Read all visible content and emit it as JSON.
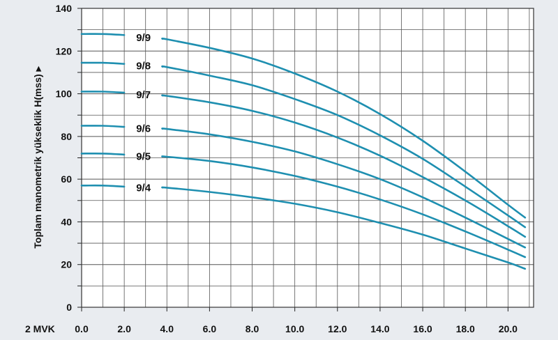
{
  "chart_data": {
    "type": "line",
    "ylabel": "Toplam manometrik yükseklik H(mss) ▸",
    "x_prefix_label": "2 MVK",
    "xlim": [
      0,
      21.2
    ],
    "ylim": [
      0,
      140
    ],
    "x_ticks": [
      0,
      2,
      4,
      6,
      8,
      10,
      12,
      14,
      16,
      18,
      20
    ],
    "x_tick_labels": [
      "0.0",
      "2.0",
      "4.0",
      "6.0",
      "8.0",
      "10.0",
      "12.0",
      "14.0",
      "16.0",
      "18.0",
      "20.0"
    ],
    "y_ticks": [
      0,
      20,
      40,
      60,
      80,
      100,
      120,
      140
    ],
    "y_tick_labels": [
      "0",
      "20",
      "40",
      "60",
      "80",
      "100",
      "120",
      "140"
    ],
    "grid": true,
    "line_color": "#1e8fb0",
    "series": [
      {
        "name": "9/9",
        "x": [
          0,
          1,
          2,
          4,
          6,
          8,
          10,
          12,
          14,
          16,
          18,
          20,
          20.8
        ],
        "y": [
          128,
          128,
          127.5,
          125.5,
          121.5,
          116.5,
          109.5,
          101,
          90.5,
          78,
          63.5,
          48,
          42
        ]
      },
      {
        "name": "9/8",
        "x": [
          0,
          1,
          2,
          4,
          6,
          8,
          10,
          12,
          14,
          16,
          18,
          20,
          20.8
        ],
        "y": [
          114.5,
          114.5,
          114,
          112.5,
          108.5,
          104,
          97.5,
          90,
          80.5,
          69.5,
          56.5,
          43,
          37.5
        ]
      },
      {
        "name": "9/7",
        "x": [
          0,
          1,
          2,
          4,
          6,
          8,
          10,
          12,
          14,
          16,
          18,
          20,
          20.8
        ],
        "y": [
          101,
          101,
          100.5,
          99,
          96,
          92,
          86.5,
          79.5,
          71,
          61,
          50,
          38,
          33
        ]
      },
      {
        "name": "9/6",
        "x": [
          0,
          1,
          2,
          4,
          6,
          8,
          10,
          12,
          14,
          16,
          18,
          20,
          20.8
        ],
        "y": [
          85,
          85,
          84.5,
          83.5,
          81,
          77.5,
          73,
          67,
          60,
          51.5,
          42,
          32,
          28
        ]
      },
      {
        "name": "9/5",
        "x": [
          0,
          1,
          2,
          4,
          6,
          8,
          10,
          12,
          14,
          16,
          18,
          20,
          20.8
        ],
        "y": [
          72,
          72,
          71.5,
          70.5,
          68.5,
          65.5,
          61.5,
          56.5,
          50.5,
          43.5,
          35.5,
          27,
          23.5
        ]
      },
      {
        "name": "9/4",
        "x": [
          0,
          1,
          2,
          4,
          6,
          8,
          10,
          12,
          14,
          16,
          18,
          20,
          20.8
        ],
        "y": [
          57,
          57,
          56.5,
          56,
          54,
          51.5,
          48.5,
          44.5,
          39.5,
          34,
          27.5,
          21,
          18
        ]
      }
    ]
  }
}
